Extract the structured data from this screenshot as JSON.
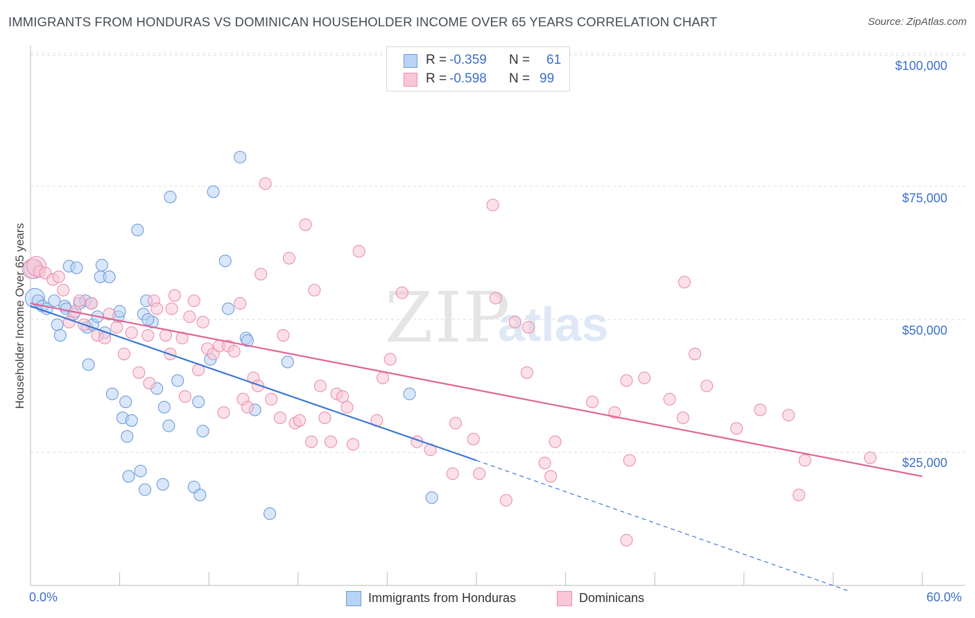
{
  "title": "IMMIGRANTS FROM HONDURAS VS DOMINICAN HOUSEHOLDER INCOME OVER 65 YEARS CORRELATION CHART",
  "source": "Source: ZipAtlas.com",
  "watermark": {
    "zip": "ZIP",
    "atlas": "atlas"
  },
  "legend_top": {
    "r_label": "R =",
    "n_label": "N =",
    "rows": [
      {
        "r": "-0.359",
        "n": "61"
      },
      {
        "r": "-0.598",
        "n": "99"
      }
    ]
  },
  "legend_bottom": [
    "Immigrants from Honduras",
    "Dominicans"
  ],
  "colors": {
    "honduras_fill": "#b9d3f5",
    "honduras_stroke": "#6f9bd9",
    "honduras_line": "#3a76d4",
    "dominican_fill": "#f9c6d6",
    "dominican_stroke": "#ea8fb0",
    "dominican_line": "#e06393",
    "tick_text": "#3b6fc9",
    "grid": "#dddddd"
  },
  "chart_data": {
    "type": "scatter",
    "xlabel": "",
    "ylabel": "Householder Income Over 65 years",
    "xlim": [
      0,
      60
    ],
    "ylim": [
      0,
      105000
    ],
    "x_tick_labels": [
      "0.0%",
      "60.0%"
    ],
    "y_ticks": [
      25000,
      50000,
      75000,
      100000
    ],
    "y_tick_labels": [
      "$25,000",
      "$50,000",
      "$75,000",
      "$100,000"
    ],
    "grid": "horizontal dashed",
    "legend": "bottom",
    "series": [
      {
        "name": "Immigrants from Honduras",
        "trend": {
          "x0": 0,
          "y0": 52500,
          "x1": 30,
          "y1": 23500,
          "dashed_to_x": 55,
          "dashed_to_y": -1000
        },
        "points": [
          [
            0.2,
            59500
          ],
          [
            0.3,
            54000
          ],
          [
            0.5,
            53500
          ],
          [
            0.8,
            52500
          ],
          [
            1.1,
            52000
          ],
          [
            1.6,
            53500
          ],
          [
            1.8,
            49000
          ],
          [
            2.0,
            47000
          ],
          [
            2.3,
            52500
          ],
          [
            2.4,
            52000
          ],
          [
            2.6,
            60000
          ],
          [
            2.9,
            51000
          ],
          [
            3.1,
            59700
          ],
          [
            3.3,
            53000
          ],
          [
            3.7,
            53500
          ],
          [
            3.8,
            48500
          ],
          [
            3.9,
            41500
          ],
          [
            4.1,
            53000
          ],
          [
            4.2,
            49000
          ],
          [
            4.5,
            50500
          ],
          [
            4.7,
            58000
          ],
          [
            4.8,
            60200
          ],
          [
            5.3,
            58000
          ],
          [
            5.5,
            36000
          ],
          [
            5.9,
            50500
          ],
          [
            6.0,
            51500
          ],
          [
            6.2,
            31500
          ],
          [
            6.4,
            34500
          ],
          [
            6.5,
            28000
          ],
          [
            6.6,
            20500
          ],
          [
            6.8,
            31000
          ],
          [
            7.2,
            66800
          ],
          [
            7.4,
            21500
          ],
          [
            7.6,
            51000
          ],
          [
            7.7,
            18000
          ],
          [
            7.8,
            53500
          ],
          [
            8.2,
            49500
          ],
          [
            8.5,
            37000
          ],
          [
            8.9,
            19000
          ],
          [
            9.0,
            33500
          ],
          [
            9.3,
            30000
          ],
          [
            9.4,
            73000
          ],
          [
            9.9,
            38500
          ],
          [
            11.0,
            18500
          ],
          [
            11.3,
            34500
          ],
          [
            11.4,
            17000
          ],
          [
            11.6,
            29000
          ],
          [
            12.1,
            42500
          ],
          [
            12.3,
            74000
          ],
          [
            13.1,
            61000
          ],
          [
            13.3,
            52000
          ],
          [
            14.1,
            80500
          ],
          [
            14.5,
            46500
          ],
          [
            14.6,
            46000
          ],
          [
            15.1,
            33000
          ],
          [
            16.1,
            13500
          ],
          [
            17.3,
            42000
          ],
          [
            25.5,
            36000
          ],
          [
            27.0,
            16500
          ],
          [
            7.9,
            50000
          ],
          [
            5.0,
            47500
          ]
        ]
      },
      {
        "name": "Dominicans",
        "trend": {
          "x0": 0,
          "y0": 53000,
          "x1": 60,
          "y1": 20500
        },
        "points": [
          [
            0.1,
            59500
          ],
          [
            0.4,
            60000
          ],
          [
            0.6,
            59000
          ],
          [
            1.0,
            58700
          ],
          [
            1.5,
            57500
          ],
          [
            1.9,
            58000
          ],
          [
            2.2,
            55500
          ],
          [
            2.6,
            49500
          ],
          [
            3.0,
            51500
          ],
          [
            3.3,
            53500
          ],
          [
            3.6,
            49000
          ],
          [
            4.1,
            53000
          ],
          [
            4.5,
            47000
          ],
          [
            5.0,
            46500
          ],
          [
            5.3,
            51000
          ],
          [
            5.8,
            48500
          ],
          [
            6.3,
            43500
          ],
          [
            6.8,
            47500
          ],
          [
            7.3,
            40000
          ],
          [
            7.9,
            47000
          ],
          [
            8.0,
            38000
          ],
          [
            8.3,
            53500
          ],
          [
            8.5,
            52000
          ],
          [
            9.1,
            47000
          ],
          [
            9.4,
            43500
          ],
          [
            9.5,
            52000
          ],
          [
            9.7,
            54500
          ],
          [
            10.2,
            46500
          ],
          [
            10.4,
            35500
          ],
          [
            10.7,
            50500
          ],
          [
            11.0,
            53500
          ],
          [
            11.3,
            40500
          ],
          [
            11.6,
            49500
          ],
          [
            11.9,
            44500
          ],
          [
            12.3,
            43500
          ],
          [
            12.7,
            45000
          ],
          [
            13.0,
            32500
          ],
          [
            13.3,
            45000
          ],
          [
            13.7,
            44000
          ],
          [
            14.1,
            53000
          ],
          [
            14.3,
            35000
          ],
          [
            14.6,
            33500
          ],
          [
            15.0,
            39000
          ],
          [
            15.3,
            37500
          ],
          [
            15.5,
            58500
          ],
          [
            15.8,
            75500
          ],
          [
            16.2,
            35000
          ],
          [
            16.8,
            31500
          ],
          [
            17.0,
            47000
          ],
          [
            17.4,
            61500
          ],
          [
            17.8,
            30500
          ],
          [
            18.1,
            31000
          ],
          [
            18.5,
            67800
          ],
          [
            18.9,
            27000
          ],
          [
            19.1,
            55500
          ],
          [
            19.5,
            37500
          ],
          [
            19.8,
            31500
          ],
          [
            20.2,
            27000
          ],
          [
            20.6,
            36000
          ],
          [
            21.0,
            35500
          ],
          [
            21.3,
            33500
          ],
          [
            21.7,
            26500
          ],
          [
            22.1,
            62800
          ],
          [
            23.3,
            31000
          ],
          [
            23.7,
            39000
          ],
          [
            24.2,
            42500
          ],
          [
            25.0,
            55000
          ],
          [
            26.0,
            27000
          ],
          [
            26.9,
            25500
          ],
          [
            28.4,
            21000
          ],
          [
            28.6,
            30500
          ],
          [
            29.8,
            27500
          ],
          [
            30.2,
            21000
          ],
          [
            31.1,
            71500
          ],
          [
            31.3,
            54000
          ],
          [
            32.0,
            16000
          ],
          [
            32.6,
            49500
          ],
          [
            33.4,
            40000
          ],
          [
            33.5,
            48500
          ],
          [
            34.6,
            23000
          ],
          [
            35.0,
            20500
          ],
          [
            35.3,
            27000
          ],
          [
            37.8,
            34500
          ],
          [
            39.3,
            32500
          ],
          [
            40.1,
            38500
          ],
          [
            40.3,
            23500
          ],
          [
            40.1,
            8500
          ],
          [
            41.3,
            39000
          ],
          [
            43.0,
            35000
          ],
          [
            43.9,
            31500
          ],
          [
            44.7,
            43500
          ],
          [
            45.5,
            37500
          ],
          [
            47.5,
            29500
          ],
          [
            49.1,
            33000
          ],
          [
            51.0,
            32000
          ],
          [
            51.7,
            17000
          ],
          [
            52.1,
            23500
          ],
          [
            56.5,
            24000
          ],
          [
            44.0,
            57000
          ]
        ]
      }
    ]
  }
}
